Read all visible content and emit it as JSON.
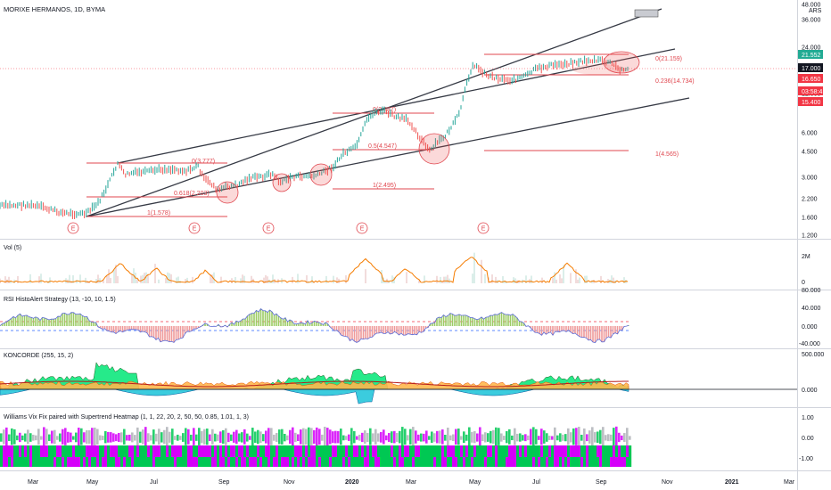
{
  "header": {
    "title": "MORIXE HERMANOS, 1D, BYMA"
  },
  "price_axis": {
    "ticks": [
      "48.000",
      "36.000",
      "24.000",
      "12.000",
      "6.000",
      "4.500",
      "3.000",
      "2.200",
      "1.600",
      "1.200"
    ],
    "currency": "ARS"
  },
  "badges": [
    {
      "name": "badge-high",
      "text": "21.552",
      "color": "#22ab94"
    },
    {
      "name": "badge-last",
      "text": "17.000",
      "color": "#131722"
    },
    {
      "name": "badge-low",
      "text": "16.650",
      "color": "#f23645"
    },
    {
      "name": "badge-countdown",
      "text": "03:58:41",
      "color": "#f23645"
    },
    {
      "name": "badge-close",
      "text": "15.400",
      "color": "#f23645"
    }
  ],
  "fib_labels": [
    "0(3.777)",
    "0.618(2.203)",
    "1(1.578)",
    "0(3.387)",
    "0.5(4.547)",
    "1(2.495)",
    "0(21.159)",
    "0.236(14.734)",
    "1(4.565)"
  ],
  "earnings_marker": "E",
  "panes": {
    "vol": {
      "title": "Vol (5)",
      "ticks": [
        "2M",
        "0"
      ]
    },
    "rsi": {
      "title": "RSI HistoAlert Strategy (13, -10, 10, 1.5)",
      "ticks": [
        "80.000",
        "40.000",
        "0.000",
        "-40.000"
      ]
    },
    "koncorde": {
      "title": "KONCORDE (255, 15, 2)",
      "ticks": [
        "500.000",
        "0.000"
      ]
    },
    "williams": {
      "title": "Williams Vix Fix paired with Supertrend Heatmap (1, 1, 22, 20, 2, 50, 50, 0.85, 1.01, 1, 3)",
      "ticks": [
        "1.00",
        "0.00",
        "-1.00"
      ]
    }
  },
  "time_axis": {
    "labels": [
      "Mar",
      "May",
      "Jul",
      "Sep",
      "Nov",
      "2020",
      "Mar",
      "May",
      "Jul",
      "Sep",
      "Nov",
      "2021",
      "Mar"
    ]
  },
  "colors": {
    "up": "#26a69a",
    "down": "#ef5350",
    "fib": "#e0474f",
    "orange": "#f57c00",
    "green": "#00c853",
    "magenta": "#d500f9",
    "teal": "#00bcd4"
  }
}
